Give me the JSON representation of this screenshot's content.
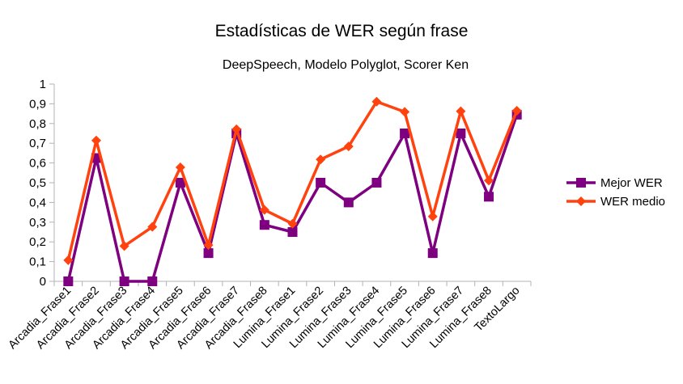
{
  "chart_data": {
    "type": "line",
    "title": "Estadísticas de WER según frase",
    "subtitle": "DeepSpeech, Modelo Polyglot, Scorer Ken",
    "xlabel": "",
    "ylabel": "",
    "ylim": [
      0,
      1
    ],
    "yticks": [
      "0",
      "0,1",
      "0,2",
      "0,3",
      "0,4",
      "0,5",
      "0,6",
      "0,7",
      "0,8",
      "0,9",
      "1"
    ],
    "grid": false,
    "legend_position": "right",
    "categories": [
      "Arcadia_Frase1",
      "Arcadia_Frase2",
      "Arcadia_Frase3",
      "Arcadia_Frase4",
      "Arcadia_Frase5",
      "Arcadia_Frase6",
      "Arcadia_Frase7",
      "Arcadia_Frase8",
      "Lumina_Frase1",
      "Lumina_Frase2",
      "Lumina_Frase3",
      "Lumina_Frase4",
      "Lumina_Frase5",
      "Lumina_Frase6",
      "Lumina_Frase7",
      "Lumina_Frase8",
      "TextoLargo"
    ],
    "series": [
      {
        "name": "Mejor WER",
        "color": "#7e0080",
        "marker": "square",
        "values": [
          0,
          0.625,
          0,
          0,
          0.5,
          0.143,
          0.75,
          0.286,
          0.25,
          0.5,
          0.4,
          0.5,
          0.75,
          0.143,
          0.75,
          0.429,
          0.845
        ]
      },
      {
        "name": "WER medio",
        "color": "#ff420e",
        "marker": "diamond",
        "values": [
          0.107,
          0.714,
          0.179,
          0.276,
          0.578,
          0.184,
          0.771,
          0.362,
          0.292,
          0.618,
          0.684,
          0.911,
          0.859,
          0.329,
          0.862,
          0.511,
          0.865
        ]
      }
    ]
  }
}
